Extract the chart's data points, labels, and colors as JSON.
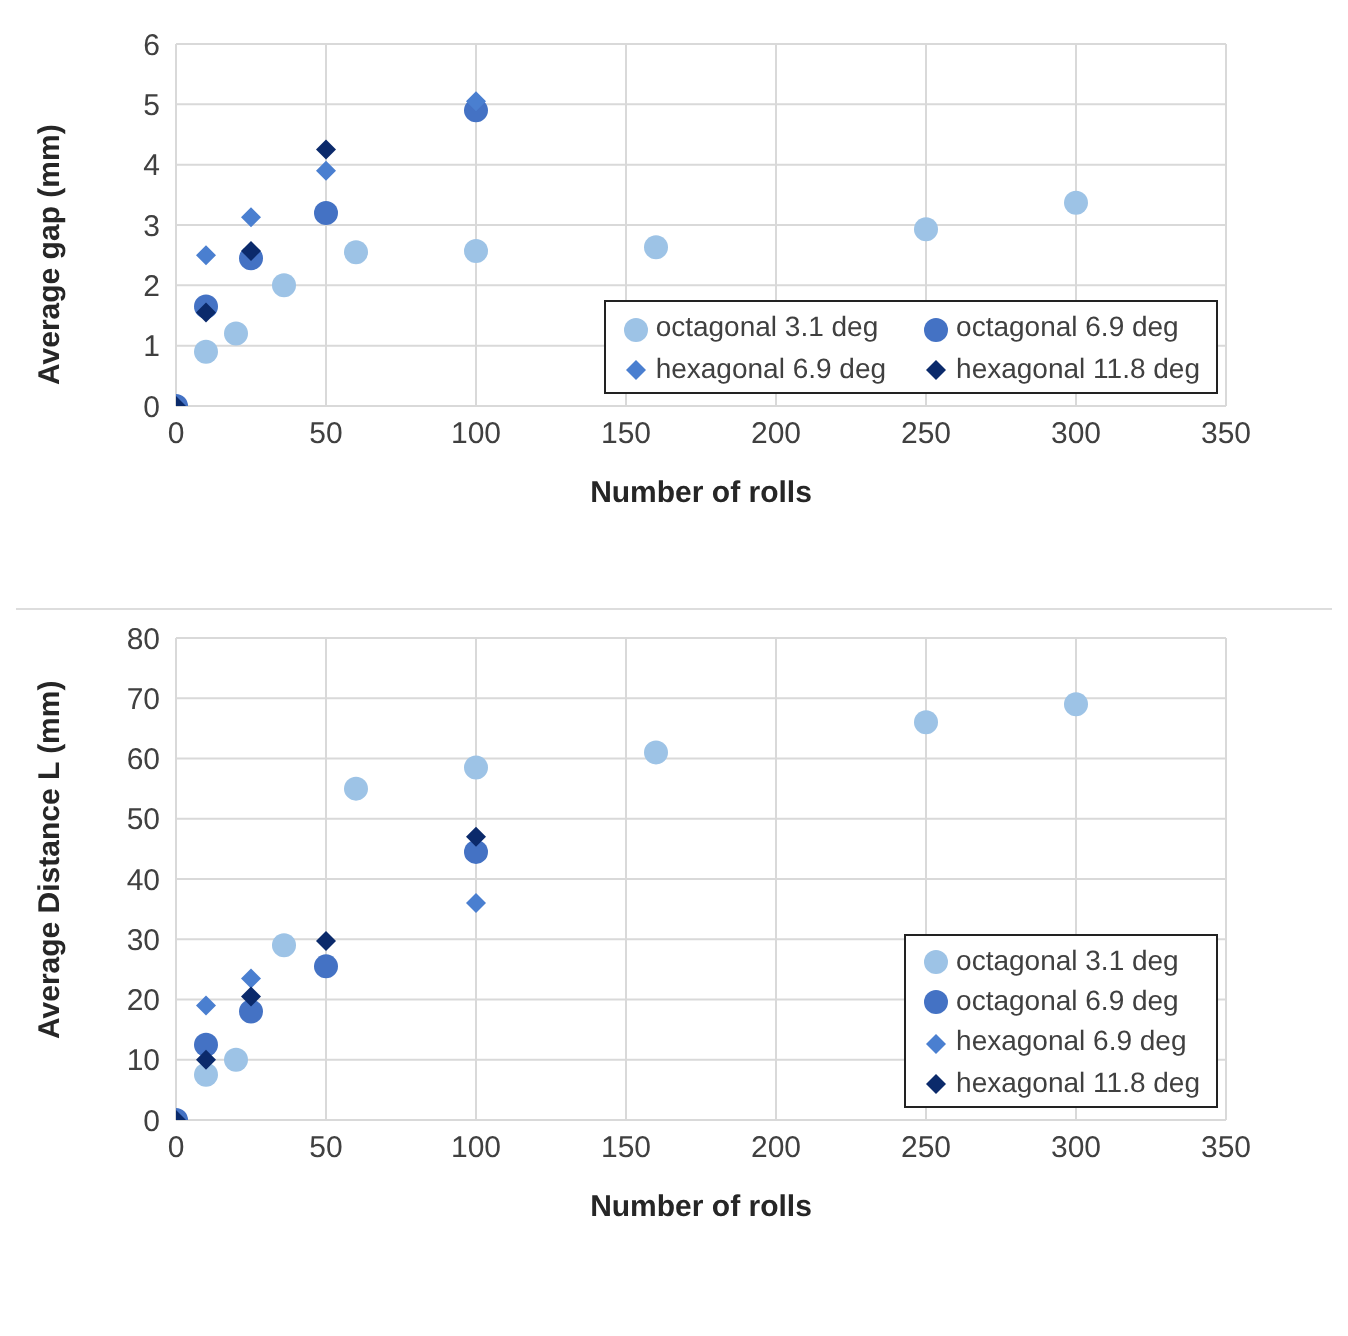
{
  "chart_data": [
    {
      "type": "scatter",
      "xlabel": "Number of rolls",
      "ylabel": "Average gap (mm)",
      "xlim": [
        0,
        350
      ],
      "xticks": [
        0,
        50,
        100,
        150,
        200,
        250,
        300,
        350
      ],
      "ylim": [
        0,
        6
      ],
      "yticks": [
        0,
        1,
        2,
        3,
        4,
        5,
        6
      ],
      "grid": true,
      "legend": "bottom right",
      "series": [
        {
          "name": "octagonal 3.1 deg",
          "color": "#9dc3e6",
          "marker": "circle",
          "x": [
            10,
            20,
            36,
            60,
            100,
            160,
            250,
            300
          ],
          "values": [
            0.9,
            1.2,
            2.0,
            2.55,
            2.57,
            2.63,
            2.93,
            3.37
          ]
        },
        {
          "name": "octagonal 6.9 deg",
          "color": "#4472c4",
          "marker": "circle",
          "x": [
            0,
            10,
            25,
            50,
            100
          ],
          "values": [
            0,
            1.65,
            2.45,
            3.2,
            4.9
          ]
        },
        {
          "name": "hexagonal 6.9 deg",
          "color": "#4a7fd0",
          "marker": "diamond",
          "x": [
            10,
            25,
            50,
            100
          ],
          "values": [
            2.5,
            3.13,
            3.9,
            5.05
          ]
        },
        {
          "name": "hexagonal 11.8 deg",
          "color": "#0b2a6b",
          "marker": "diamond",
          "x": [
            0,
            10,
            25,
            50
          ],
          "values": [
            0,
            1.55,
            2.57,
            4.25
          ]
        }
      ]
    },
    {
      "type": "scatter",
      "xlabel": "Number of rolls",
      "ylabel": "Average Distance L (mm)",
      "xlim": [
        0,
        350
      ],
      "xticks": [
        0,
        50,
        100,
        150,
        200,
        250,
        300,
        350
      ],
      "ylim": [
        0,
        80
      ],
      "yticks": [
        0,
        10,
        20,
        30,
        40,
        50,
        60,
        70,
        80
      ],
      "grid": true,
      "legend": "bottom right",
      "series": [
        {
          "name": "octagonal 3.1 deg",
          "color": "#9dc3e6",
          "marker": "circle",
          "x": [
            10,
            20,
            36,
            60,
            100,
            160,
            250,
            300
          ],
          "values": [
            7.5,
            10,
            29,
            55,
            58.5,
            61,
            66,
            69
          ]
        },
        {
          "name": "octagonal 6.9 deg",
          "color": "#4472c4",
          "marker": "circle",
          "x": [
            0,
            10,
            25,
            50,
            100
          ],
          "values": [
            0,
            12.5,
            18,
            25.5,
            44.5
          ]
        },
        {
          "name": "hexagonal 6.9 deg",
          "color": "#4a7fd0",
          "marker": "diamond",
          "x": [
            10,
            25,
            100
          ],
          "values": [
            19,
            23.5,
            36
          ]
        },
        {
          "name": "hexagonal 11.8 deg",
          "color": "#0b2a6b",
          "marker": "diamond",
          "x": [
            0,
            10,
            25,
            50,
            100
          ],
          "values": [
            0,
            10,
            20.5,
            29.7,
            47
          ]
        }
      ]
    }
  ]
}
